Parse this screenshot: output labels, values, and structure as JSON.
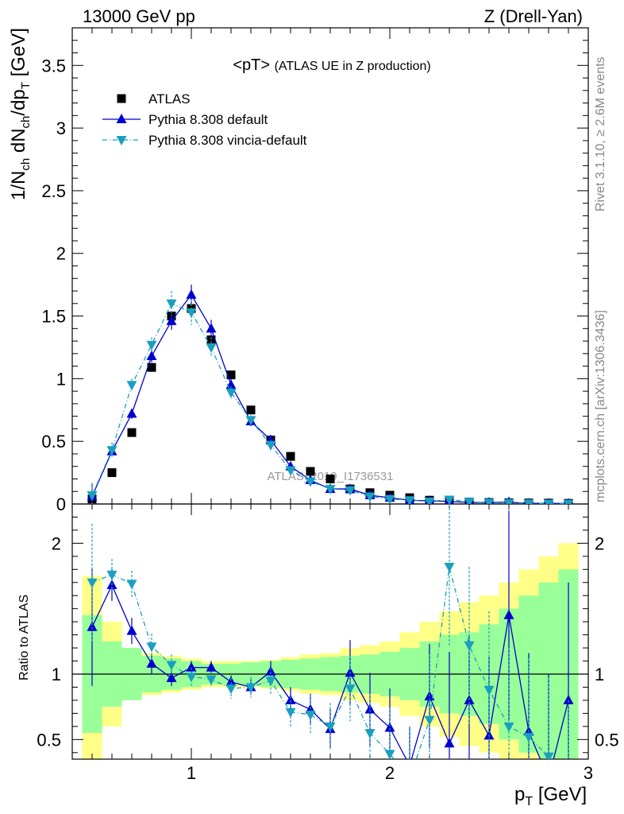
{
  "header": {
    "left": "13000 GeV pp",
    "right": "Z (Drell-Yan)"
  },
  "side_labels": {
    "rivet": "Rivet 3.1.10, ≥ 2.6M events",
    "mcplots": "mcplots.cern.ch [arXiv:1306.3436]"
  },
  "chart_data": {
    "type": "scatter",
    "title": "<pT> (ATLAS UE in Z production)",
    "title_main": "<pT>",
    "title_sub": "(ATLAS UE in Z production)",
    "watermark": "ATLAS_2019_I1736531",
    "xlabel": "p_T [GeV]",
    "xlabel_main": "p",
    "xlabel_sub": "T",
    "xlabel_unit": "[GeV]",
    "ylabel": "1/N_ch dN_ch/dp_T [GeV]",
    "ratio_ylabel": "Ratio to ATLAS",
    "xlim": [
      0.4,
      3.0
    ],
    "ylim": [
      0,
      3.8
    ],
    "ratio_ylim": [
      0.35,
      2.3
    ],
    "xticks": [
      "1",
      "2",
      "3"
    ],
    "yticks": [
      "0",
      "0.5",
      "1",
      "1.5",
      "2",
      "2.5",
      "3",
      "3.5"
    ],
    "ratio_yticks": [
      "0.5",
      "1",
      "2"
    ],
    "legend_position": "top-left",
    "colors": {
      "data": "#000000",
      "default": "#0000cc",
      "vincia": "#1a9fbf",
      "band_inner": "#99ff99",
      "band_outer": "#ffff88"
    },
    "x": [
      0.5,
      0.6,
      0.7,
      0.8,
      0.9,
      1.0,
      1.1,
      1.2,
      1.3,
      1.4,
      1.5,
      1.6,
      1.7,
      1.8,
      1.9,
      2.0,
      2.1,
      2.2,
      2.3,
      2.4,
      2.5,
      2.6,
      2.7,
      2.8,
      2.9
    ],
    "series": [
      {
        "name": "ATLAS",
        "style": "data",
        "values": [
          0.04,
          0.25,
          0.57,
          1.09,
          1.5,
          1.56,
          1.31,
          1.03,
          0.75,
          0.51,
          0.38,
          0.26,
          0.2,
          0.12,
          0.09,
          0.07,
          0.05,
          0.03,
          0.02,
          0.015,
          0.012,
          0.01,
          0.008,
          0.007,
          0.005
        ],
        "ratio": [
          1,
          1,
          1,
          1,
          1,
          1,
          1,
          1,
          1,
          1,
          1,
          1,
          1,
          1,
          1,
          1,
          1,
          1,
          1,
          1,
          1,
          1,
          1,
          1,
          1
        ],
        "band_inner": [
          0.45,
          0.25,
          0.2,
          0.14,
          0.12,
          0.1,
          0.08,
          0.08,
          0.09,
          0.1,
          0.11,
          0.12,
          0.13,
          0.14,
          0.15,
          0.17,
          0.2,
          0.25,
          0.3,
          0.32,
          0.38,
          0.5,
          0.6,
          0.7,
          0.8
        ],
        "band_outer": [
          0.75,
          0.4,
          0.2,
          0.16,
          0.14,
          0.12,
          0.1,
          0.1,
          0.1,
          0.11,
          0.13,
          0.15,
          0.16,
          0.2,
          0.22,
          0.25,
          0.32,
          0.4,
          0.48,
          0.55,
          0.6,
          0.7,
          0.8,
          0.9,
          1.0
        ]
      },
      {
        "name": "Pythia 8.308 default",
        "style": "default",
        "values": [
          0.06,
          0.42,
          0.72,
          1.18,
          1.46,
          1.67,
          1.4,
          0.95,
          0.66,
          0.51,
          0.3,
          0.19,
          0.12,
          0.12,
          0.07,
          0.05,
          0.03,
          0.025,
          0.02,
          0.012,
          0.012,
          0.015,
          0.005,
          0.005,
          0.004
        ],
        "ratio": [
          1.36,
          1.68,
          1.33,
          1.08,
          0.97,
          1.05,
          1.05,
          0.94,
          0.9,
          1.02,
          0.8,
          0.73,
          0.58,
          1.01,
          0.73,
          0.59,
          0.3,
          0.83,
          0.47,
          0.8,
          0.53,
          1.45,
          0.56,
          0.2,
          0.8
        ],
        "err": [
          0.1,
          0.03,
          0.04,
          0.05,
          0.07,
          0.08,
          0.07,
          0.05,
          0.04,
          0.04,
          0.03,
          0.02,
          0.02,
          0.02,
          0.01,
          0.01,
          0.01,
          0.005,
          0.005,
          0.005,
          0.005,
          0.005,
          0.003,
          0.003,
          0.003
        ],
        "ratio_err": [
          0.45,
          0.12,
          0.1,
          0.08,
          0.06,
          0.05,
          0.05,
          0.05,
          0.06,
          0.08,
          0.1,
          0.12,
          0.15,
          0.25,
          0.28,
          0.3,
          0.3,
          0.4,
          0.7,
          0.5,
          0.6,
          0.8,
          0.6,
          0.8,
          0.9
        ]
      },
      {
        "name": "Pythia 8.308 vincia-default",
        "style": "vincia",
        "values": [
          0.07,
          0.43,
          0.95,
          1.27,
          1.6,
          1.53,
          1.25,
          0.89,
          0.67,
          0.47,
          0.27,
          0.18,
          0.12,
          0.11,
          0.06,
          0.04,
          0.03,
          0.02,
          0.035,
          0.018,
          0.01,
          0.008,
          0.005,
          0.003,
          0.002
        ],
        "ratio": [
          1.7,
          1.76,
          1.69,
          1.21,
          1.07,
          0.98,
          0.96,
          0.89,
          0.9,
          0.95,
          0.71,
          0.69,
          0.6,
          0.89,
          0.55,
          0.39,
          0.2,
          0.65,
          1.82,
          1.22,
          0.88,
          0.6,
          0.52,
          0.37,
          0.2
        ],
        "err": [
          0.1,
          0.06,
          0.05,
          0.06,
          0.1,
          0.1,
          0.08,
          0.05,
          0.04,
          0.04,
          0.03,
          0.02,
          0.02,
          0.02,
          0.01,
          0.01,
          0.01,
          0.005,
          0.01,
          0.005,
          0.005,
          0.004,
          0.003,
          0.003,
          0.002
        ],
        "ratio_err": [
          0.45,
          0.12,
          0.1,
          0.1,
          0.08,
          0.07,
          0.06,
          0.08,
          0.08,
          0.1,
          0.12,
          0.15,
          0.18,
          0.25,
          0.3,
          0.35,
          0.4,
          0.5,
          0.6,
          0.6,
          0.6,
          0.6,
          0.6,
          0.6,
          0.6
        ]
      }
    ]
  }
}
